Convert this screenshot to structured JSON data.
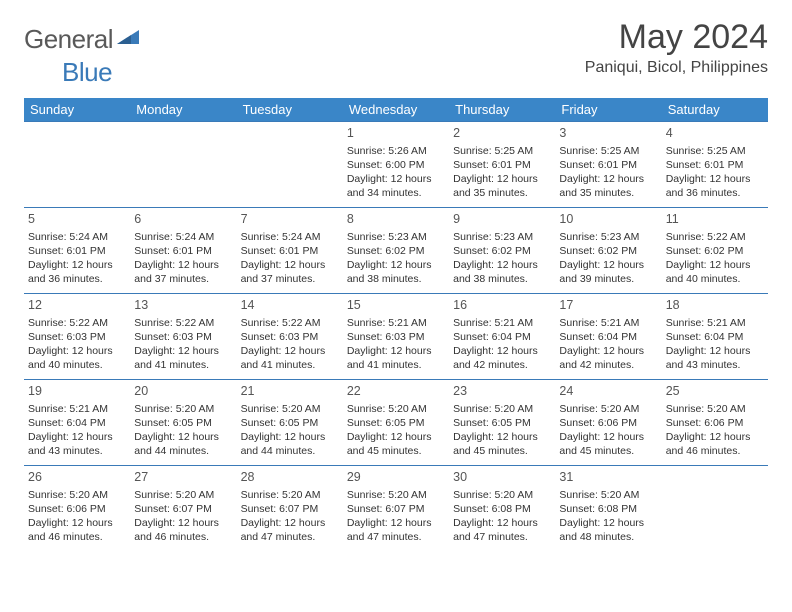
{
  "logo": {
    "word1": "General",
    "word2": "Blue"
  },
  "title": "May 2024",
  "location": "Paniqui, Bicol, Philippines",
  "colors": {
    "header_bg": "#3a86c8",
    "header_fg": "#ffffff",
    "rule": "#3a7ab8",
    "logo_gray": "#595959",
    "logo_blue": "#3a7ab8",
    "text": "#333333"
  },
  "dayHeaders": [
    "Sunday",
    "Monday",
    "Tuesday",
    "Wednesday",
    "Thursday",
    "Friday",
    "Saturday"
  ],
  "weeks": [
    [
      null,
      null,
      null,
      {
        "n": "1",
        "sr": "5:26 AM",
        "ss": "6:00 PM",
        "dl": "12 hours and 34 minutes."
      },
      {
        "n": "2",
        "sr": "5:25 AM",
        "ss": "6:01 PM",
        "dl": "12 hours and 35 minutes."
      },
      {
        "n": "3",
        "sr": "5:25 AM",
        "ss": "6:01 PM",
        "dl": "12 hours and 35 minutes."
      },
      {
        "n": "4",
        "sr": "5:25 AM",
        "ss": "6:01 PM",
        "dl": "12 hours and 36 minutes."
      }
    ],
    [
      {
        "n": "5",
        "sr": "5:24 AM",
        "ss": "6:01 PM",
        "dl": "12 hours and 36 minutes."
      },
      {
        "n": "6",
        "sr": "5:24 AM",
        "ss": "6:01 PM",
        "dl": "12 hours and 37 minutes."
      },
      {
        "n": "7",
        "sr": "5:24 AM",
        "ss": "6:01 PM",
        "dl": "12 hours and 37 minutes."
      },
      {
        "n": "8",
        "sr": "5:23 AM",
        "ss": "6:02 PM",
        "dl": "12 hours and 38 minutes."
      },
      {
        "n": "9",
        "sr": "5:23 AM",
        "ss": "6:02 PM",
        "dl": "12 hours and 38 minutes."
      },
      {
        "n": "10",
        "sr": "5:23 AM",
        "ss": "6:02 PM",
        "dl": "12 hours and 39 minutes."
      },
      {
        "n": "11",
        "sr": "5:22 AM",
        "ss": "6:02 PM",
        "dl": "12 hours and 40 minutes."
      }
    ],
    [
      {
        "n": "12",
        "sr": "5:22 AM",
        "ss": "6:03 PM",
        "dl": "12 hours and 40 minutes."
      },
      {
        "n": "13",
        "sr": "5:22 AM",
        "ss": "6:03 PM",
        "dl": "12 hours and 41 minutes."
      },
      {
        "n": "14",
        "sr": "5:22 AM",
        "ss": "6:03 PM",
        "dl": "12 hours and 41 minutes."
      },
      {
        "n": "15",
        "sr": "5:21 AM",
        "ss": "6:03 PM",
        "dl": "12 hours and 41 minutes."
      },
      {
        "n": "16",
        "sr": "5:21 AM",
        "ss": "6:04 PM",
        "dl": "12 hours and 42 minutes."
      },
      {
        "n": "17",
        "sr": "5:21 AM",
        "ss": "6:04 PM",
        "dl": "12 hours and 42 minutes."
      },
      {
        "n": "18",
        "sr": "5:21 AM",
        "ss": "6:04 PM",
        "dl": "12 hours and 43 minutes."
      }
    ],
    [
      {
        "n": "19",
        "sr": "5:21 AM",
        "ss": "6:04 PM",
        "dl": "12 hours and 43 minutes."
      },
      {
        "n": "20",
        "sr": "5:20 AM",
        "ss": "6:05 PM",
        "dl": "12 hours and 44 minutes."
      },
      {
        "n": "21",
        "sr": "5:20 AM",
        "ss": "6:05 PM",
        "dl": "12 hours and 44 minutes."
      },
      {
        "n": "22",
        "sr": "5:20 AM",
        "ss": "6:05 PM",
        "dl": "12 hours and 45 minutes."
      },
      {
        "n": "23",
        "sr": "5:20 AM",
        "ss": "6:05 PM",
        "dl": "12 hours and 45 minutes."
      },
      {
        "n": "24",
        "sr": "5:20 AM",
        "ss": "6:06 PM",
        "dl": "12 hours and 45 minutes."
      },
      {
        "n": "25",
        "sr": "5:20 AM",
        "ss": "6:06 PM",
        "dl": "12 hours and 46 minutes."
      }
    ],
    [
      {
        "n": "26",
        "sr": "5:20 AM",
        "ss": "6:06 PM",
        "dl": "12 hours and 46 minutes."
      },
      {
        "n": "27",
        "sr": "5:20 AM",
        "ss": "6:07 PM",
        "dl": "12 hours and 46 minutes."
      },
      {
        "n": "28",
        "sr": "5:20 AM",
        "ss": "6:07 PM",
        "dl": "12 hours and 47 minutes."
      },
      {
        "n": "29",
        "sr": "5:20 AM",
        "ss": "6:07 PM",
        "dl": "12 hours and 47 minutes."
      },
      {
        "n": "30",
        "sr": "5:20 AM",
        "ss": "6:08 PM",
        "dl": "12 hours and 47 minutes."
      },
      {
        "n": "31",
        "sr": "5:20 AM",
        "ss": "6:08 PM",
        "dl": "12 hours and 48 minutes."
      },
      null
    ]
  ],
  "labels": {
    "sunrise": "Sunrise:",
    "sunset": "Sunset:",
    "daylight": "Daylight:"
  }
}
